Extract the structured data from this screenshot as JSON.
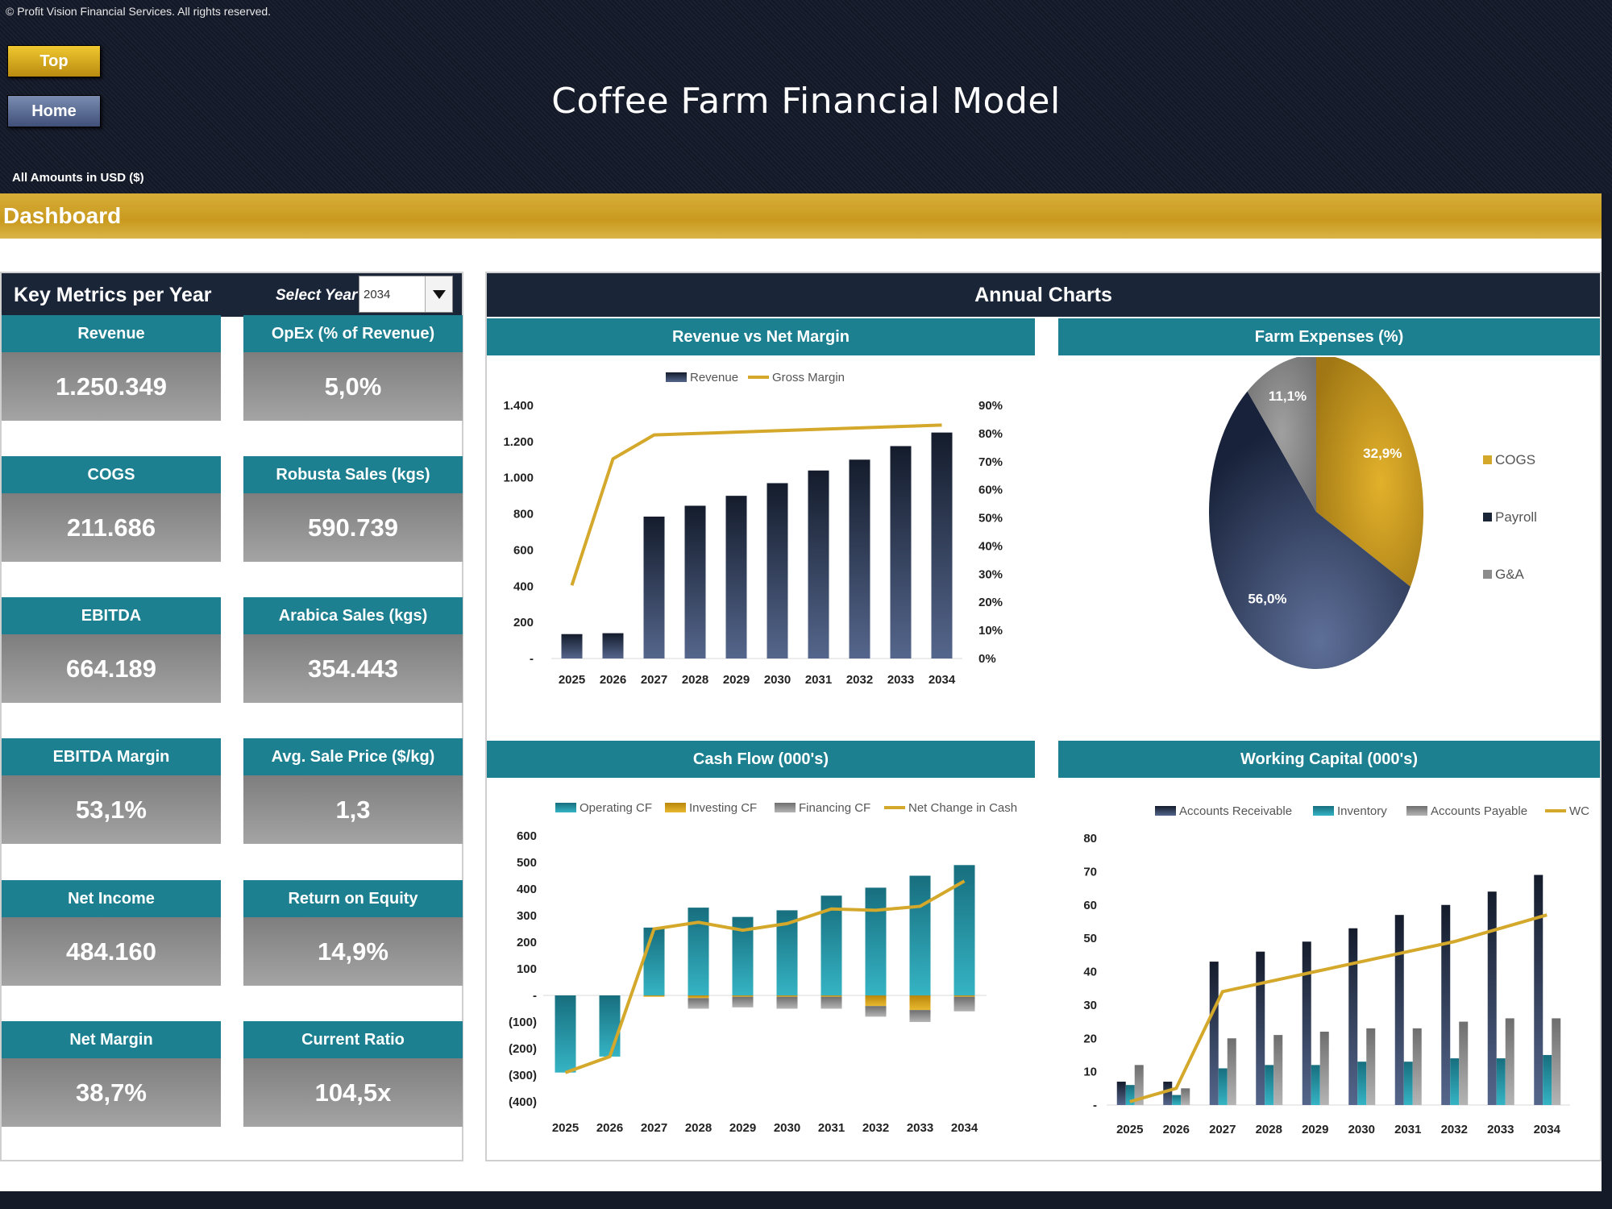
{
  "header": {
    "copyright": "© Profit Vision Financial Services. All rights reserved.",
    "title": "Coffee Farm Financial Model",
    "amounts": "All Amounts in  USD ($)",
    "nav": {
      "top": "Top",
      "home": "Home"
    }
  },
  "dashboard": {
    "title": "Dashboard"
  },
  "metrics_panel": {
    "title": "Key Metrics per Year",
    "select_label": "Select Year",
    "selected_year": "2034",
    "cards": [
      {
        "label": "Revenue",
        "value": "1.250.349"
      },
      {
        "label": "OpEx (% of Revenue)",
        "value": "5,0%"
      },
      {
        "label": "COGS",
        "value": "211.686"
      },
      {
        "label": "Robusta Sales (kgs)",
        "value": "590.739"
      },
      {
        "label": "EBITDA",
        "value": "664.189"
      },
      {
        "label": "Arabica Sales (kgs)",
        "value": "354.443"
      },
      {
        "label": "EBITDA Margin",
        "value": "53,1%"
      },
      {
        "label": "Avg. Sale Price ($/kg)",
        "value": "1,3"
      },
      {
        "label": "Net Income",
        "value": "484.160"
      },
      {
        "label": "Return on Equity",
        "value": "14,9%"
      },
      {
        "label": "Net Margin",
        "value": "38,7%"
      },
      {
        "label": "Current Ratio",
        "value": "104,5x"
      }
    ]
  },
  "charts_panel": {
    "title": "Annual Charts"
  },
  "colors": {
    "navy": "#1b2538",
    "teal": "#1d8090",
    "gold": "#d4a82a",
    "gray": "#8c8c8c"
  },
  "chart_data": [
    {
      "type": "bar",
      "title": "Revenue vs Net Margin",
      "categories": [
        "2025",
        "2026",
        "2027",
        "2028",
        "2029",
        "2030",
        "2031",
        "2032",
        "2033",
        "2034"
      ],
      "series": [
        {
          "name": "Revenue",
          "type": "bar",
          "axis": "left",
          "values": [
            135,
            140,
            785,
            845,
            900,
            970,
            1040,
            1100,
            1175,
            1250
          ]
        },
        {
          "name": "Gross Margin",
          "type": "line",
          "axis": "right",
          "values": [
            26,
            71,
            79.5,
            80,
            80.5,
            81,
            81.5,
            82,
            82.5,
            83
          ]
        }
      ],
      "y_ticks": [
        "-",
        "200",
        "400",
        "600",
        "800",
        "1.000",
        "1.200",
        "1.400"
      ],
      "ylim": [
        0,
        1400
      ],
      "y2_ticks": [
        "0%",
        "10%",
        "20%",
        "30%",
        "40%",
        "50%",
        "60%",
        "70%",
        "80%",
        "90%"
      ],
      "y2lim": [
        0,
        90
      ],
      "legend": "top"
    },
    {
      "type": "pie",
      "title": "Farm Expenses (%)",
      "slices": [
        {
          "name": "COGS",
          "value": 32.9,
          "label": "32,9%"
        },
        {
          "name": "Payroll",
          "value": 56.0,
          "label": "56,0%"
        },
        {
          "name": "G&A",
          "value": 11.1,
          "label": "11,1%"
        }
      ],
      "legend": "right"
    },
    {
      "type": "bar",
      "title": "Cash Flow (000's)",
      "stacked": true,
      "categories": [
        "2025",
        "2026",
        "2027",
        "2028",
        "2029",
        "2030",
        "2031",
        "2032",
        "2033",
        "2034"
      ],
      "series": [
        {
          "name": "Operating CF",
          "type": "bar",
          "values": [
            -290,
            -230,
            255,
            330,
            295,
            320,
            375,
            405,
            450,
            490
          ]
        },
        {
          "name": "Investing CF",
          "type": "bar",
          "values": [
            0,
            0,
            -5,
            -10,
            -5,
            -5,
            -5,
            -40,
            -55,
            -5
          ]
        },
        {
          "name": "Financing CF",
          "type": "bar",
          "values": [
            0,
            0,
            0,
            -40,
            -40,
            -45,
            -45,
            -40,
            -45,
            -55
          ]
        },
        {
          "name": "Net Change in Cash",
          "type": "line",
          "values": [
            -290,
            -230,
            250,
            275,
            245,
            270,
            325,
            320,
            335,
            430
          ]
        }
      ],
      "y_ticks": [
        "(400)",
        "(300)",
        "(200)",
        "(100)",
        "-",
        "100",
        "200",
        "300",
        "400",
        "500",
        "600"
      ],
      "ylim": [
        -400,
        600
      ],
      "legend": "top"
    },
    {
      "type": "bar",
      "title": "Working Capital (000's)",
      "categories": [
        "2025",
        "2026",
        "2027",
        "2028",
        "2029",
        "2030",
        "2031",
        "2032",
        "2033",
        "2034"
      ],
      "series": [
        {
          "name": "Accounts Receivable",
          "type": "bar",
          "values": [
            7,
            7,
            43,
            46,
            49,
            53,
            57,
            60,
            64,
            69
          ]
        },
        {
          "name": "Inventory",
          "type": "bar",
          "values": [
            6,
            3,
            11,
            12,
            12,
            13,
            13,
            14,
            14,
            15
          ]
        },
        {
          "name": "Accounts Payable",
          "type": "bar",
          "values": [
            12,
            5,
            20,
            21,
            22,
            23,
            23,
            25,
            26,
            26
          ]
        },
        {
          "name": "WC",
          "type": "line",
          "values": [
            1,
            5,
            34,
            37,
            40,
            43,
            46,
            49,
            53,
            57
          ]
        }
      ],
      "y_ticks": [
        "-",
        "10",
        "20",
        "30",
        "40",
        "50",
        "60",
        "70",
        "80"
      ],
      "ylim": [
        0,
        80
      ],
      "legend": "top"
    }
  ]
}
